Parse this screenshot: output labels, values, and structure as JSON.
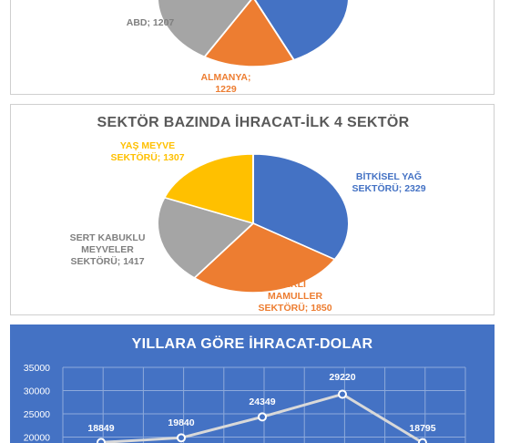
{
  "colors": {
    "blue": "#4472c4",
    "orange": "#ed7d31",
    "gray": "#a5a5a5",
    "yellow": "#ffc000",
    "navy_bg": "#4472c4"
  },
  "chart_data": [
    {
      "type": "pie",
      "title": "",
      "slices": [
        {
          "label": "ALMANYA",
          "value": 1229
        },
        {
          "label": "ABD",
          "value": 1207
        }
      ],
      "labels_text": [
        "ABD; 1207",
        "ALMANYA;",
        "1229"
      ]
    },
    {
      "type": "pie",
      "title": "SEKTÖR BAZINDA İHRACAT-İLK 4 SEKTÖR",
      "slices": [
        {
          "label": "BİTKİSEL YAĞ SEKTÖRÜ",
          "value": 2329
        },
        {
          "label": "HUBUBAT, BAKLİYAT, YAĞLI TOHUMLAR VE MAMULLER SEKTÖRÜ",
          "value": 1850
        },
        {
          "label": "SERT KABUKLU MEYVELER SEKTÖRÜ",
          "value": 1417
        },
        {
          "label": "YAŞ MEYVE SEKTÖRÜ",
          "value": 1307
        }
      ],
      "labels_text": {
        "blue": [
          "BİTKİSEL YAĞ",
          "SEKTÖRÜ; 2329"
        ],
        "orange": [
          "ERLİ",
          "MAMULLER",
          "SEKTÖRÜ; 1850"
        ],
        "gray": [
          "SERT KABUKLU",
          "MEYVELER",
          "SEKTÖRÜ; 1417"
        ],
        "yellow": [
          "YAŞ MEYVE",
          "SEKTÖRÜ; 1307"
        ]
      }
    },
    {
      "type": "line",
      "title": "YILLARA GÖRE İHRACAT-DOLAR",
      "ylim": [
        20000,
        35000
      ],
      "yticks": [
        "35000",
        "30000",
        "25000",
        "20000"
      ],
      "series": [
        {
          "values": [
            18849,
            19840,
            24349,
            29220,
            18795
          ]
        }
      ],
      "data_labels": [
        "18849",
        "19840",
        "24349",
        "29220",
        "18795"
      ]
    }
  ]
}
